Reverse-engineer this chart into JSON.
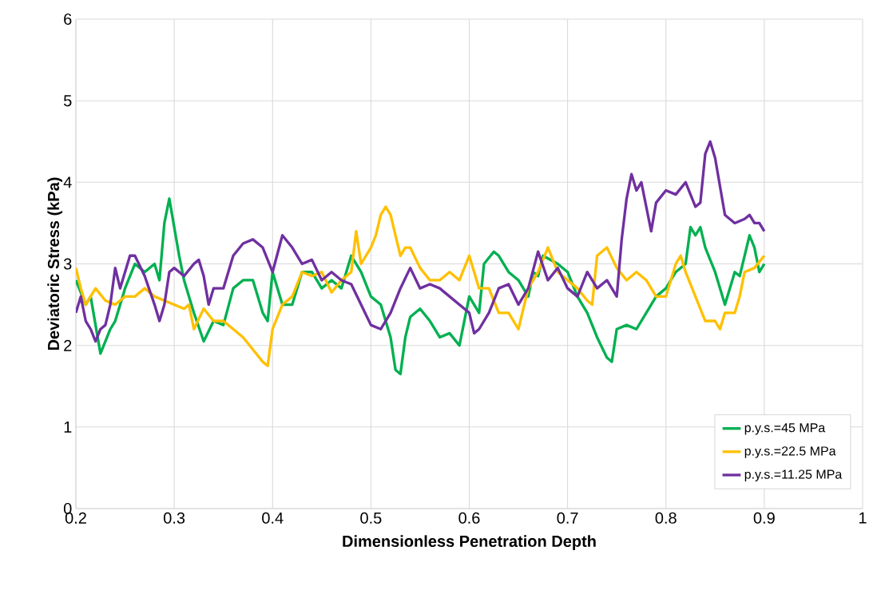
{
  "chart_data": {
    "type": "line",
    "xlabel": "Dimensionless Penetration Depth",
    "ylabel": "Deviatoric Stress (kPa)",
    "xlim": [
      0.2,
      1
    ],
    "xticks": [
      {
        "value": 0.2,
        "label": "0.2"
      },
      {
        "value": 0.3,
        "label": "0.3"
      },
      {
        "value": 0.4,
        "label": "0.4"
      },
      {
        "value": 0.5,
        "label": "0.5"
      },
      {
        "value": 0.6,
        "label": "0.6"
      },
      {
        "value": 0.7,
        "label": "0.7"
      },
      {
        "value": 0.8,
        "label": "0.8"
      },
      {
        "value": 0.9,
        "label": "0.9"
      },
      {
        "value": 1,
        "label": "1"
      }
    ],
    "ylim": [
      0,
      6
    ],
    "yticks": [
      0,
      1,
      2,
      3,
      4,
      5,
      6
    ],
    "grid": true,
    "legend": "bottom right",
    "marker": "none",
    "line_style": "solid",
    "series": [
      {
        "name": "p.y.s.=45 MPa",
        "color": "#00b050",
        "x": [
          0.2,
          0.21,
          0.215,
          0.225,
          0.235,
          0.24,
          0.25,
          0.26,
          0.27,
          0.28,
          0.285,
          0.29,
          0.295,
          0.305,
          0.31,
          0.32,
          0.33,
          0.34,
          0.35,
          0.36,
          0.37,
          0.38,
          0.39,
          0.395,
          0.4,
          0.41,
          0.42,
          0.43,
          0.44,
          0.45,
          0.46,
          0.47,
          0.48,
          0.49,
          0.5,
          0.51,
          0.52,
          0.525,
          0.53,
          0.535,
          0.54,
          0.55,
          0.56,
          0.57,
          0.58,
          0.59,
          0.6,
          0.61,
          0.615,
          0.625,
          0.63,
          0.64,
          0.65,
          0.66,
          0.665,
          0.67,
          0.675,
          0.69,
          0.7,
          0.71,
          0.72,
          0.73,
          0.74,
          0.745,
          0.75,
          0.76,
          0.77,
          0.78,
          0.79,
          0.8,
          0.81,
          0.82,
          0.825,
          0.83,
          0.835,
          0.84,
          0.85,
          0.86,
          0.865,
          0.87,
          0.875,
          0.88,
          0.885,
          0.89,
          0.895,
          0.9
        ],
        "values": [
          2.8,
          2.5,
          2.6,
          1.9,
          2.2,
          2.3,
          2.7,
          3.0,
          2.9,
          3.0,
          2.8,
          3.5,
          3.8,
          3.1,
          2.8,
          2.4,
          2.05,
          2.3,
          2.25,
          2.7,
          2.8,
          2.8,
          2.4,
          2.3,
          2.9,
          2.5,
          2.5,
          2.9,
          2.9,
          2.7,
          2.8,
          2.7,
          3.1,
          2.9,
          2.6,
          2.5,
          2.1,
          1.7,
          1.65,
          2.1,
          2.35,
          2.45,
          2.3,
          2.1,
          2.15,
          2.0,
          2.6,
          2.4,
          3.0,
          3.15,
          3.1,
          2.9,
          2.8,
          2.6,
          2.9,
          2.85,
          3.1,
          3.0,
          2.9,
          2.6,
          2.4,
          2.1,
          1.85,
          1.8,
          2.2,
          2.25,
          2.2,
          2.4,
          2.6,
          2.7,
          2.9,
          3.0,
          3.45,
          3.35,
          3.45,
          3.2,
          2.9,
          2.5,
          2.7,
          2.9,
          2.85,
          3.1,
          3.35,
          3.2,
          2.9,
          3.0
        ]
      },
      {
        "name": "p.y.s.=22.5 MPa",
        "color": "#ffc000",
        "x": [
          0.2,
          0.205,
          0.21,
          0.215,
          0.22,
          0.23,
          0.24,
          0.25,
          0.26,
          0.27,
          0.28,
          0.29,
          0.3,
          0.31,
          0.315,
          0.32,
          0.33,
          0.34,
          0.35,
          0.36,
          0.37,
          0.38,
          0.39,
          0.395,
          0.4,
          0.41,
          0.42,
          0.43,
          0.44,
          0.45,
          0.46,
          0.47,
          0.48,
          0.485,
          0.49,
          0.5,
          0.505,
          0.51,
          0.515,
          0.52,
          0.53,
          0.535,
          0.54,
          0.55,
          0.56,
          0.57,
          0.58,
          0.59,
          0.6,
          0.61,
          0.62,
          0.63,
          0.64,
          0.65,
          0.66,
          0.67,
          0.68,
          0.69,
          0.7,
          0.71,
          0.72,
          0.725,
          0.73,
          0.74,
          0.75,
          0.76,
          0.77,
          0.78,
          0.79,
          0.8,
          0.81,
          0.815,
          0.82,
          0.83,
          0.84,
          0.85,
          0.855,
          0.86,
          0.87,
          0.875,
          0.88,
          0.89,
          0.9
        ],
        "values": [
          2.95,
          2.7,
          2.5,
          2.6,
          2.7,
          2.55,
          2.5,
          2.6,
          2.6,
          2.7,
          2.6,
          2.55,
          2.5,
          2.45,
          2.5,
          2.2,
          2.45,
          2.3,
          2.3,
          2.2,
          2.1,
          1.95,
          1.8,
          1.75,
          2.2,
          2.5,
          2.6,
          2.9,
          2.85,
          2.9,
          2.65,
          2.8,
          2.9,
          3.4,
          3.0,
          3.2,
          3.35,
          3.6,
          3.7,
          3.6,
          3.1,
          3.2,
          3.2,
          2.95,
          2.8,
          2.8,
          2.9,
          2.8,
          3.1,
          2.7,
          2.7,
          2.4,
          2.4,
          2.2,
          2.7,
          2.9,
          3.2,
          2.9,
          2.8,
          2.7,
          2.55,
          2.5,
          3.1,
          3.2,
          2.95,
          2.8,
          2.9,
          2.8,
          2.6,
          2.6,
          3.0,
          3.1,
          2.9,
          2.6,
          2.3,
          2.3,
          2.2,
          2.4,
          2.4,
          2.6,
          2.9,
          2.95,
          3.1
        ]
      },
      {
        "name": "p.y.s.=11.25 MPa",
        "color": "#7030a0",
        "x": [
          0.2,
          0.205,
          0.21,
          0.215,
          0.22,
          0.225,
          0.23,
          0.235,
          0.24,
          0.245,
          0.255,
          0.26,
          0.27,
          0.28,
          0.285,
          0.29,
          0.295,
          0.3,
          0.31,
          0.32,
          0.325,
          0.33,
          0.335,
          0.34,
          0.35,
          0.36,
          0.37,
          0.38,
          0.39,
          0.4,
          0.41,
          0.42,
          0.43,
          0.44,
          0.45,
          0.46,
          0.47,
          0.48,
          0.49,
          0.5,
          0.51,
          0.52,
          0.53,
          0.54,
          0.55,
          0.56,
          0.57,
          0.58,
          0.59,
          0.6,
          0.605,
          0.61,
          0.62,
          0.63,
          0.64,
          0.65,
          0.66,
          0.67,
          0.68,
          0.69,
          0.7,
          0.71,
          0.72,
          0.73,
          0.74,
          0.75,
          0.755,
          0.76,
          0.765,
          0.77,
          0.775,
          0.78,
          0.785,
          0.79,
          0.8,
          0.81,
          0.82,
          0.83,
          0.835,
          0.84,
          0.845,
          0.85,
          0.86,
          0.87,
          0.88,
          0.885,
          0.89,
          0.895,
          0.9
        ],
        "values": [
          2.4,
          2.6,
          2.3,
          2.2,
          2.05,
          2.2,
          2.25,
          2.5,
          2.95,
          2.7,
          3.1,
          3.1,
          2.85,
          2.5,
          2.3,
          2.5,
          2.9,
          2.95,
          2.85,
          3.0,
          3.05,
          2.85,
          2.5,
          2.7,
          2.7,
          3.1,
          3.25,
          3.3,
          3.2,
          2.9,
          3.35,
          3.2,
          3.0,
          3.05,
          2.8,
          2.9,
          2.8,
          2.75,
          2.5,
          2.25,
          2.2,
          2.4,
          2.7,
          2.95,
          2.7,
          2.75,
          2.7,
          2.6,
          2.5,
          2.4,
          2.15,
          2.2,
          2.4,
          2.7,
          2.75,
          2.5,
          2.7,
          3.15,
          2.8,
          2.95,
          2.7,
          2.6,
          2.9,
          2.7,
          2.8,
          2.6,
          3.3,
          3.8,
          4.1,
          3.9,
          4.0,
          3.7,
          3.4,
          3.75,
          3.9,
          3.85,
          4.0,
          3.7,
          3.75,
          4.35,
          4.5,
          4.3,
          3.6,
          3.5,
          3.55,
          3.6,
          3.5,
          3.5,
          3.4
        ]
      }
    ]
  }
}
